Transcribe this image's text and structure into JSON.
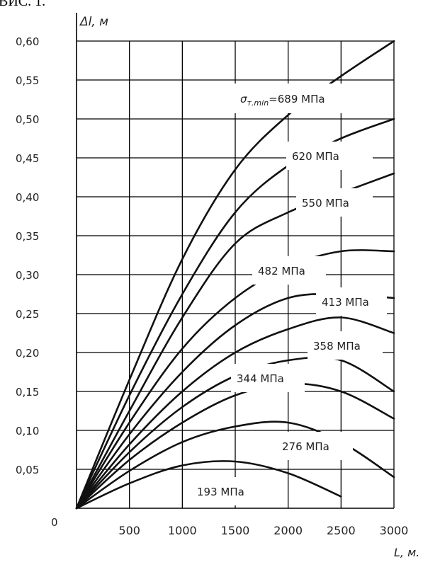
{
  "caption_fragment": "ВИС. 1.",
  "chart_data": {
    "type": "line",
    "ylabel": "Δl, м",
    "xlabel": "L, м.",
    "xlim": [
      0,
      3000
    ],
    "ylim": [
      0,
      0.6
    ],
    "x_ticks": [
      500,
      1000,
      1500,
      2000,
      2500,
      3000
    ],
    "x_tick_labels": [
      "500",
      "1000",
      "1500",
      "2000",
      "2500",
      "3000"
    ],
    "y_ticks": [
      0.05,
      0.1,
      0.15,
      0.2,
      0.25,
      0.3,
      0.35,
      0.4,
      0.45,
      0.5,
      0.55,
      0.6
    ],
    "y_tick_labels": [
      "0,05",
      "0,10",
      "0,15",
      "0,20",
      "0,25",
      "0,30",
      "0,35",
      "0,40",
      "0,45",
      "0,50",
      "0,55",
      "0,60"
    ],
    "origin_label": "0",
    "grid": true,
    "series": [
      {
        "name": "σт.min=689 МПа",
        "x": [
          0,
          500,
          1000,
          1500,
          2000,
          2500,
          3000
        ],
        "y": [
          0,
          0.165,
          0.32,
          0.435,
          0.505,
          0.555,
          0.6
        ]
      },
      {
        "name": "620 МПа",
        "x": [
          0,
          500,
          1000,
          1500,
          2000,
          2500,
          3000
        ],
        "y": [
          0,
          0.145,
          0.275,
          0.38,
          0.44,
          0.475,
          0.5
        ]
      },
      {
        "name": "550 МПа",
        "x": [
          0,
          500,
          1000,
          1500,
          2000,
          2500,
          3000
        ],
        "y": [
          0,
          0.125,
          0.245,
          0.34,
          0.38,
          0.405,
          0.43
        ]
      },
      {
        "name": "482 МПа",
        "x": [
          0,
          500,
          1000,
          1500,
          2000,
          2500,
          3000
        ],
        "y": [
          0,
          0.11,
          0.205,
          0.27,
          0.31,
          0.33,
          0.33
        ]
      },
      {
        "name": "413 МПа",
        "x": [
          0,
          500,
          1000,
          1500,
          2000,
          2500,
          3000
        ],
        "y": [
          0,
          0.095,
          0.175,
          0.235,
          0.27,
          0.275,
          0.27
        ]
      },
      {
        "name": "358 МПа",
        "x": [
          0,
          500,
          1000,
          1500,
          2000,
          2500,
          3000
        ],
        "y": [
          0,
          0.082,
          0.15,
          0.2,
          0.23,
          0.245,
          0.225
        ]
      },
      {
        "name": "344 МПа",
        "x": [
          0,
          500,
          1000,
          1500,
          2000,
          2500,
          3000
        ],
        "y": [
          0,
          0.072,
          0.13,
          0.17,
          0.19,
          0.19,
          0.15
        ]
      },
      {
        "name": "",
        "x": [
          0,
          500,
          1000,
          1500,
          2000,
          2500,
          3000
        ],
        "y": [
          0,
          0.062,
          0.11,
          0.145,
          0.16,
          0.15,
          0.115
        ]
      },
      {
        "name": "276 МПа",
        "x": [
          0,
          500,
          1000,
          1500,
          2000,
          2500,
          3000
        ],
        "y": [
          0,
          0.048,
          0.085,
          0.105,
          0.11,
          0.085,
          0.04
        ]
      },
      {
        "name": "193 МПа",
        "x": [
          0,
          500,
          1000,
          1500,
          2000,
          2500
        ],
        "y": [
          0,
          0.032,
          0.055,
          0.06,
          0.045,
          0.015
        ]
      }
    ]
  }
}
